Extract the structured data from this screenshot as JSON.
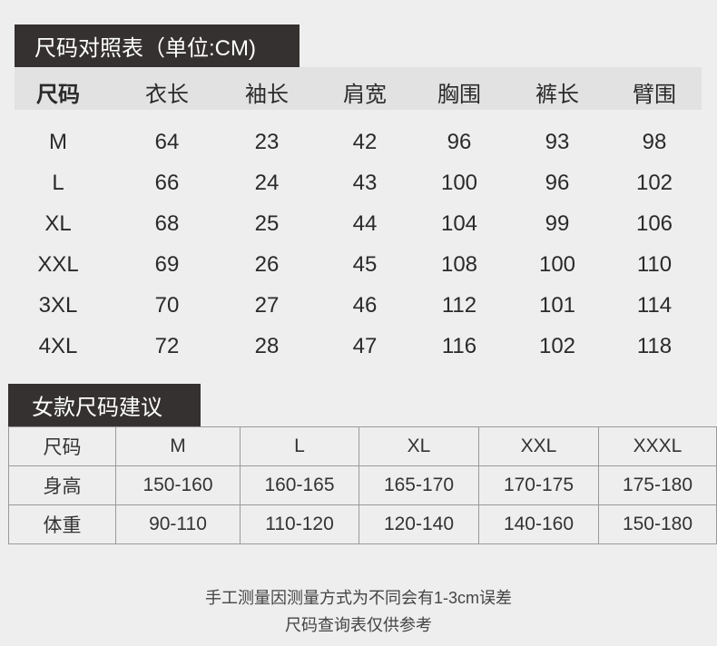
{
  "size_chart": {
    "title": "尺码对照表（单位:CM)",
    "headers": [
      "尺码",
      "衣长",
      "袖长",
      "肩宽",
      "胸围",
      "裤长",
      "臂围"
    ],
    "rows": [
      [
        "M",
        "64",
        "23",
        "42",
        "96",
        "93",
        "98"
      ],
      [
        "L",
        "66",
        "24",
        "43",
        "100",
        "96",
        "102"
      ],
      [
        "XL",
        "68",
        "25",
        "44",
        "104",
        "99",
        "106"
      ],
      [
        "XXL",
        "69",
        "26",
        "45",
        "108",
        "100",
        "110"
      ],
      [
        "3XL",
        "70",
        "27",
        "46",
        "112",
        "101",
        "114"
      ],
      [
        "4XL",
        "72",
        "28",
        "47",
        "116",
        "102",
        "118"
      ]
    ]
  },
  "women_chart": {
    "title": "女款尺码建议",
    "rows": [
      [
        "尺码",
        "M",
        "L",
        "XL",
        "XXL",
        "XXXL"
      ],
      [
        "身高",
        "150-160",
        "160-165",
        "165-170",
        "170-175",
        "175-180"
      ],
      [
        "体重",
        "90-110",
        "110-120",
        "120-140",
        "140-160",
        "150-180"
      ]
    ]
  },
  "footer": {
    "line1": "手工测量因测量方式为不同会有1-3cm误差",
    "line2": "尺码查询表仅供参考"
  },
  "colors": {
    "background": "#efeeee",
    "title_bg": "#353130",
    "header_band": "#e2e2e2"
  }
}
